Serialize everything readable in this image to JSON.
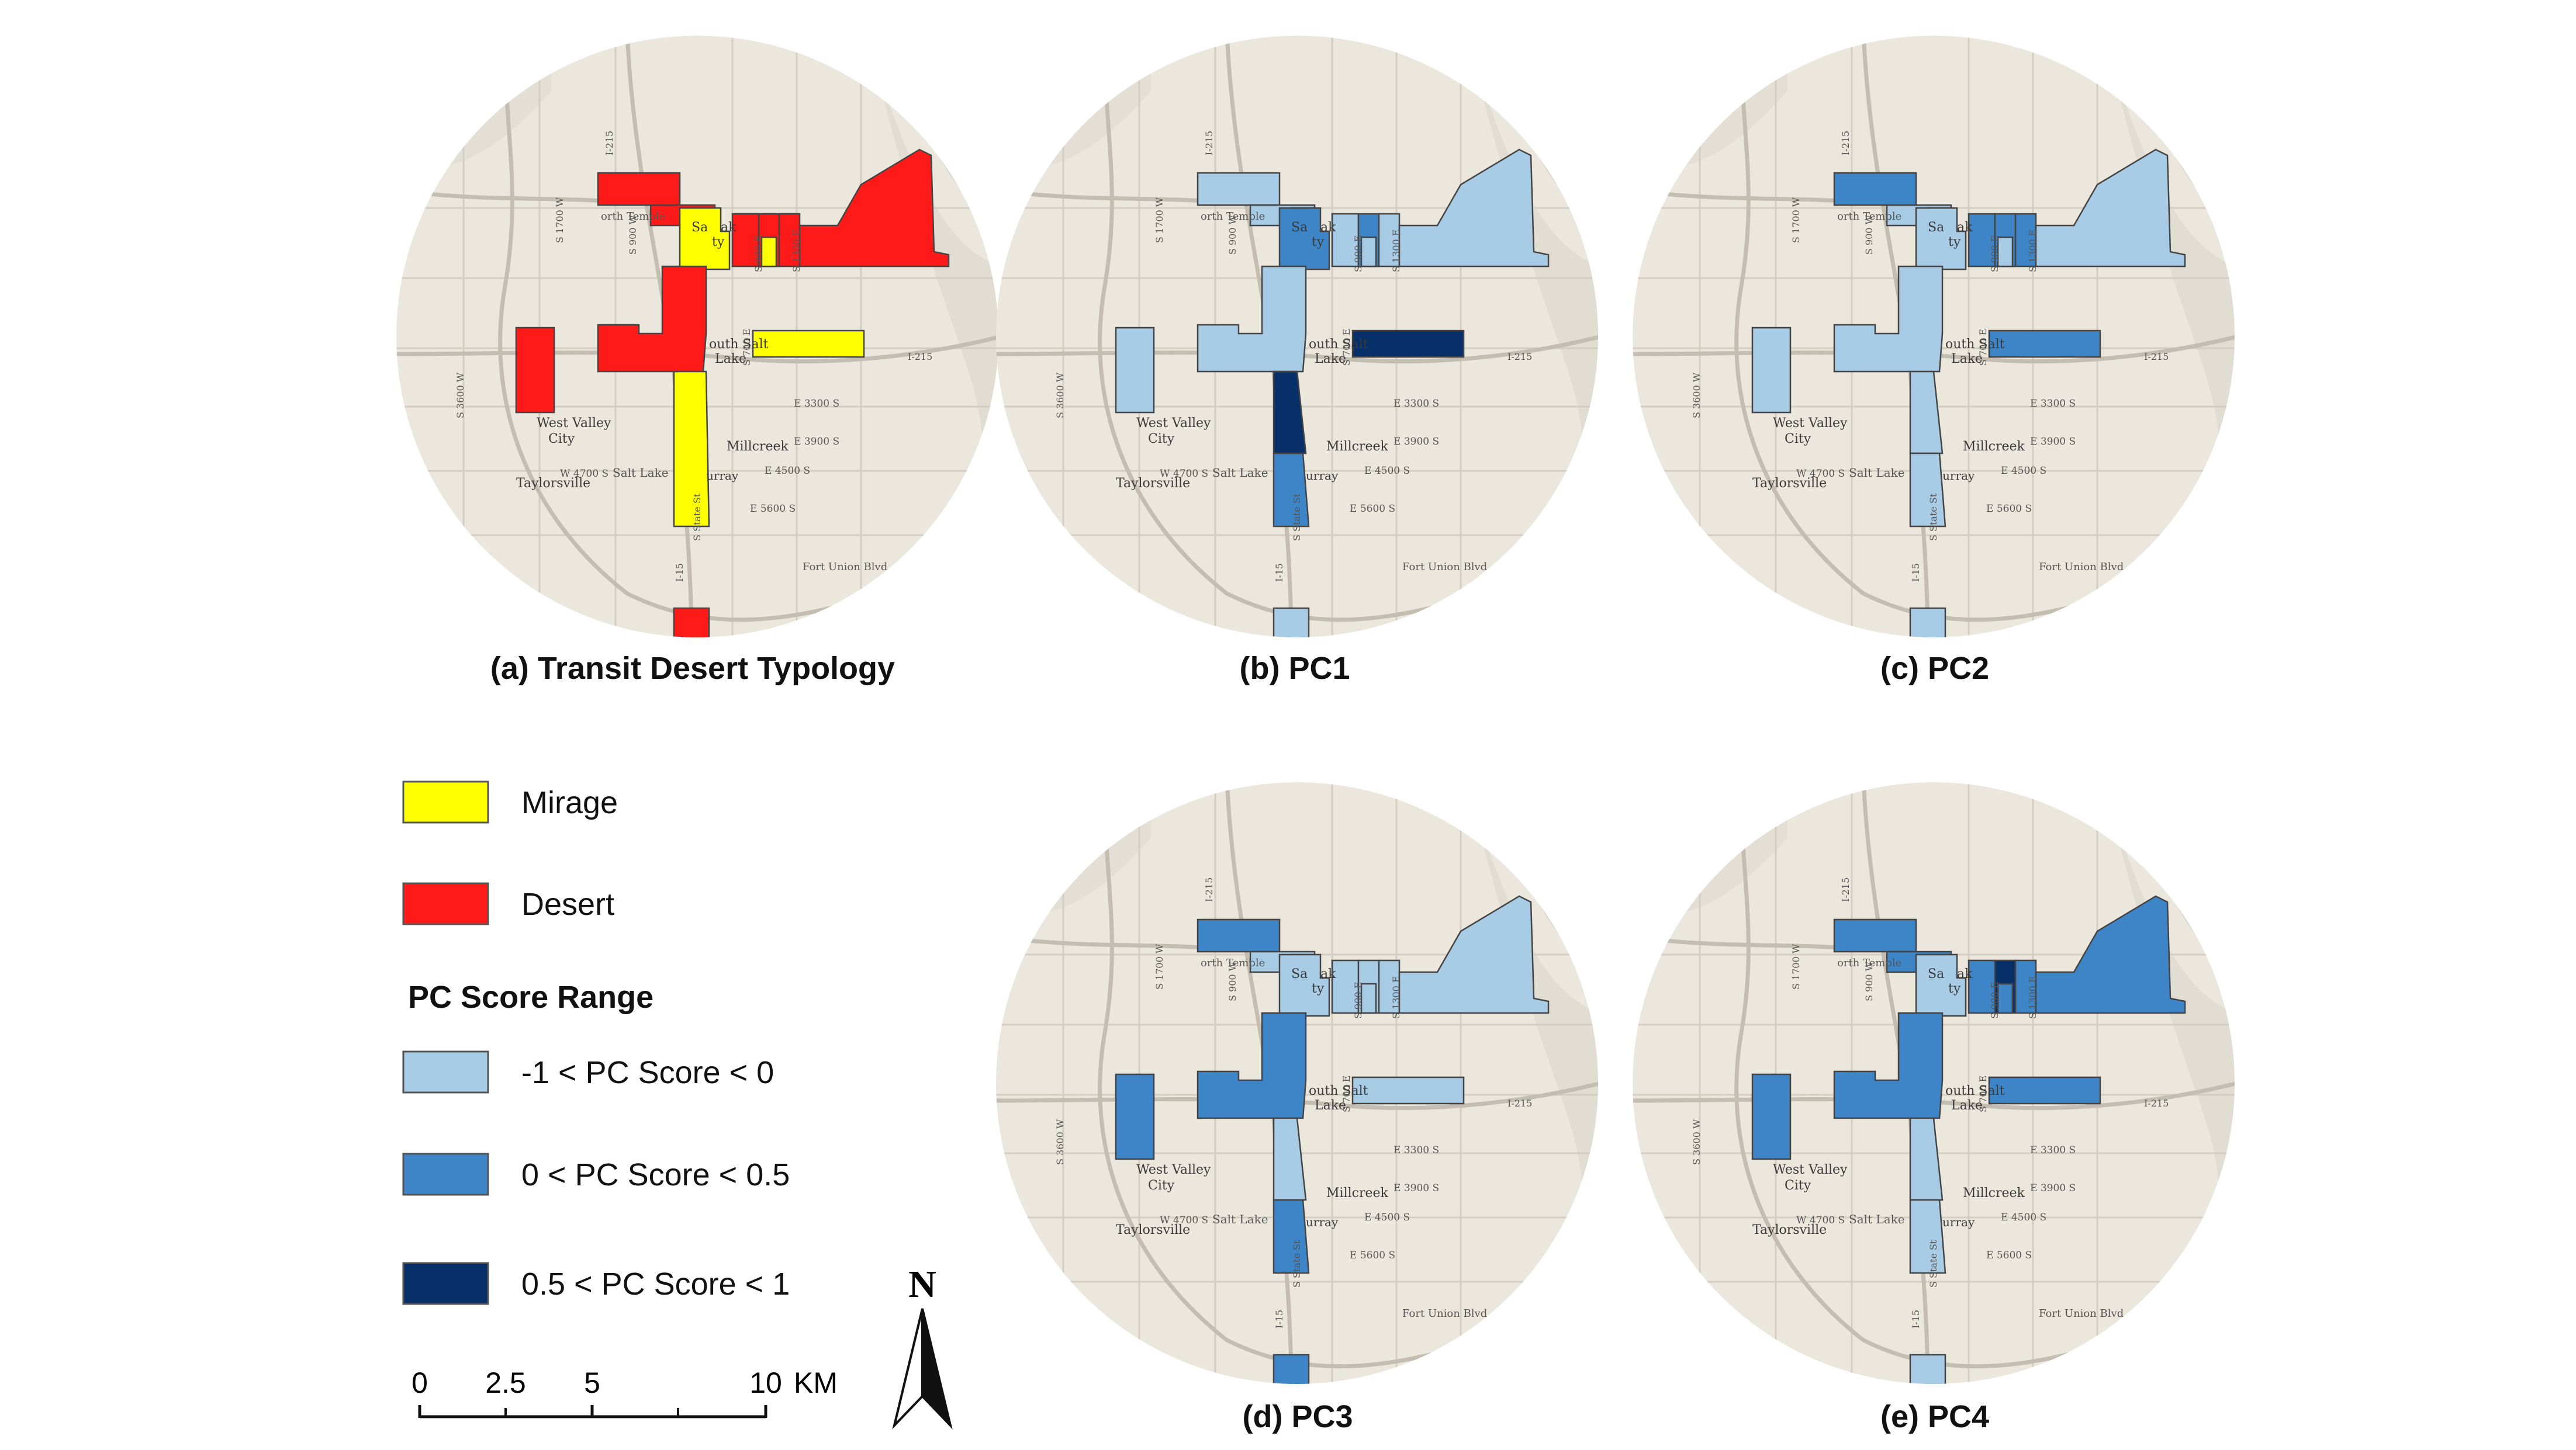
{
  "panels": [
    {
      "id": "a",
      "caption": "(a) Transit Desert Typology"
    },
    {
      "id": "b",
      "caption": "(b) PC1"
    },
    {
      "id": "c",
      "caption": "(c) PC2"
    },
    {
      "id": "d",
      "caption": "(d) PC3"
    },
    {
      "id": "e",
      "caption": "(e) PC4"
    }
  ],
  "map_labels": {
    "west_valley": [
      "West Valley",
      "City"
    ],
    "salt_lake_city": [
      "Sa",
      "ak",
      "ty"
    ],
    "south_salt_lake": [
      "outh Salt",
      "Lake"
    ],
    "millcreek": "Millcreek",
    "taylorsville": "Taylorsville",
    "murray": "urray",
    "salt_lake": "Salt Lake",
    "north_temple": "orth Temple",
    "fort_union": "Fort Union Blvd",
    "e3300": "E 3300 S",
    "e3900": "E 3900 S",
    "e4500": "E 4500 S",
    "e5600": "E 5600 S",
    "w4700": "W 4700 S",
    "s3600w": "S 3600 W",
    "s1700w": "S 1700 W",
    "s900w": "S 900 W",
    "s700e": "S 700 E",
    "s900e": "S 900 E",
    "s1300e": "S 1300 E",
    "state_st": "S State St",
    "i215a": "I-215",
    "i215b": "I-215",
    "i15": "I-15"
  },
  "colors": {
    "mirage": "#ffff00",
    "desert": "#ff1a1a",
    "pc_low": "#a8cbe6",
    "pc_mid": "#3d85c6",
    "pc_high": "#072f68",
    "basemap": "#ece7dd"
  },
  "legend": {
    "items": [
      {
        "label": "Mirage",
        "color": "#ffff00"
      },
      {
        "label": "Desert",
        "color": "#ff1a1a"
      }
    ],
    "pc_title": "PC Score Range",
    "pc_items": [
      {
        "label": "-1 < PC Score < 0",
        "color": "#a8cbe6"
      },
      {
        "label": "0 < PC Score < 0.5",
        "color": "#3d85c6"
      },
      {
        "label": "0.5 < PC Score < 1",
        "color": "#072f68"
      }
    ]
  },
  "scale_bar": {
    "ticks": [
      "0",
      "2.5",
      "5",
      "10"
    ],
    "unit": "KM"
  },
  "north_arrow": "N",
  "region_classes": {
    "a": {
      "nw": "desert",
      "nt": "desert",
      "slc_y": "mirage",
      "slc_r": "desert",
      "ec1": "desert",
      "ec2": "desert",
      "ec3": "desert",
      "ecy": "mirage",
      "nebig": "desert",
      "core": "desert",
      "west": "desert",
      "ssl": "mirage",
      "south": "mirage",
      "fu": "desert"
    },
    "b": {
      "nw": "low",
      "nt": "low",
      "slc_y": "mid",
      "slc_r": "low",
      "ec1": "low",
      "ec2": "mid",
      "ec3": "low",
      "ecy": "low",
      "nebig": "low",
      "core": "low",
      "west": "low",
      "ssl": "high",
      "south": "high",
      "south2": "mid",
      "fu": "low"
    },
    "c": {
      "nw": "mid",
      "nt": "low",
      "slc_y": "low",
      "slc_r": "low",
      "ec1": "mid",
      "ec2": "mid",
      "ec3": "mid",
      "ecy": "low",
      "nebig": "low",
      "core": "low",
      "west": "low",
      "ssl": "mid",
      "south": "low",
      "south2": "low",
      "fu": "low"
    },
    "d": {
      "nw": "mid",
      "nt": "low",
      "slc_y": "low",
      "slc_r": "mid",
      "ec1": "low",
      "ec2": "low",
      "ec3": "low",
      "ecy": "low",
      "nebig": "low",
      "core": "mid",
      "west": "mid",
      "ssl": "low",
      "south": "low",
      "south2": "mid",
      "fu": "mid"
    },
    "e": {
      "nw": "mid",
      "nt": "mid",
      "slc_y": "low",
      "slc_r": "low",
      "ec1": "mid",
      "ec2": "high",
      "ec3": "mid",
      "ecy": "mid",
      "nebig": "mid",
      "core": "mid",
      "west": "mid",
      "ssl": "mid",
      "south": "low",
      "south2": "low",
      "fu": "low"
    }
  }
}
